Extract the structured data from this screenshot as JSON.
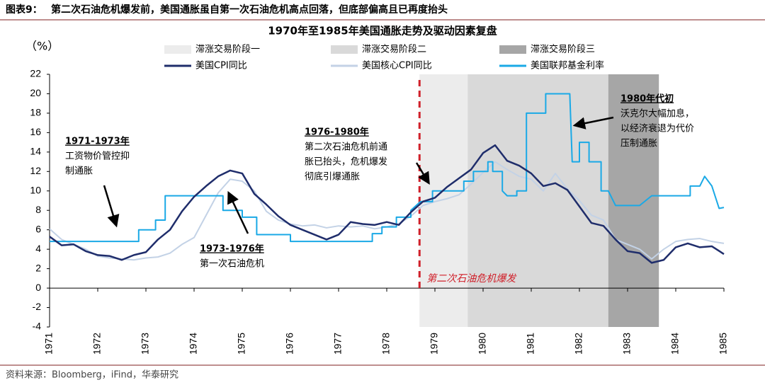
{
  "header": {
    "label": "图表9：",
    "title": "第二次石油危机爆发前，美国通胀虽自第一次石油危机高点回落，但底部偏高且已再度抬头"
  },
  "chart_data": {
    "type": "line",
    "title": "1970年至1985年美国通胀走势及驱动因素复盘",
    "y_label": "（%）",
    "xlim": [
      1971,
      1985
    ],
    "xticks": [
      1971,
      1972,
      1973,
      1974,
      1975,
      1976,
      1977,
      1978,
      1979,
      1980,
      1981,
      1982,
      1983,
      1984,
      1985
    ],
    "ylim": [
      -4,
      22
    ],
    "yticks": [
      -4,
      -2,
      0,
      2,
      4,
      6,
      8,
      10,
      12,
      14,
      16,
      18,
      20,
      22
    ],
    "shaded_regions": [
      {
        "name": "滞涨交易阶段一",
        "color": "#ececec",
        "xlim": [
          1978.68,
          1979.68
        ]
      },
      {
        "name": "滞涨交易阶段二",
        "color": "#d9d9d9",
        "xlim": [
          1979.68,
          1982.6
        ]
      },
      {
        "name": "滞涨交易阶段三",
        "color": "#a6a6a6",
        "xlim": [
          1982.6,
          1983.65
        ]
      }
    ],
    "event": {
      "x": 1978.68,
      "label": "第二次石油危机爆发",
      "color": "#d0202a"
    },
    "series": [
      {
        "name": "美国CPI同比",
        "color": "#1f2d6b",
        "x": [
          1971,
          1971.25,
          1971.5,
          1971.75,
          1972,
          1972.25,
          1972.5,
          1972.75,
          1973,
          1973.25,
          1973.5,
          1973.75,
          1974,
          1974.25,
          1974.5,
          1974.75,
          1975,
          1975.25,
          1975.5,
          1975.75,
          1976,
          1976.25,
          1976.5,
          1976.75,
          1977,
          1977.25,
          1977.5,
          1977.75,
          1978,
          1978.25,
          1978.5,
          1978.75,
          1979,
          1979.25,
          1979.5,
          1979.75,
          1980,
          1980.25,
          1980.5,
          1980.75,
          1981,
          1981.25,
          1981.5,
          1981.75,
          1982,
          1982.25,
          1982.5,
          1982.75,
          1983,
          1983.25,
          1983.5,
          1983.75,
          1984,
          1984.25,
          1984.5,
          1984.75,
          1985
        ],
        "values": [
          5.3,
          4.4,
          4.5,
          3.8,
          3.4,
          3.3,
          2.9,
          3.4,
          3.7,
          5.0,
          6.0,
          7.9,
          9.4,
          10.5,
          11.5,
          12.1,
          11.8,
          9.7,
          8.6,
          7.4,
          6.5,
          6.0,
          5.5,
          5.0,
          5.5,
          6.8,
          6.6,
          6.5,
          6.8,
          6.5,
          7.8,
          8.9,
          9.3,
          10.4,
          11.3,
          12.2,
          13.9,
          14.7,
          13.1,
          12.6,
          11.8,
          10.5,
          10.8,
          10.1,
          8.4,
          6.7,
          6.4,
          5.0,
          3.8,
          3.6,
          2.6,
          2.9,
          4.2,
          4.6,
          4.2,
          4.3,
          3.5
        ]
      },
      {
        "name": "美国核心CPI同比",
        "color": "#c3d2e6",
        "x": [
          1971,
          1971.25,
          1971.5,
          1971.75,
          1972,
          1972.25,
          1972.5,
          1972.75,
          1973,
          1973.25,
          1973.5,
          1973.75,
          1974,
          1974.25,
          1974.5,
          1974.75,
          1975,
          1975.25,
          1975.5,
          1975.75,
          1976,
          1976.25,
          1976.5,
          1976.75,
          1977,
          1977.25,
          1977.5,
          1977.75,
          1978,
          1978.25,
          1978.5,
          1978.75,
          1979,
          1979.25,
          1979.5,
          1979.75,
          1980,
          1980.25,
          1980.5,
          1980.75,
          1981,
          1981.25,
          1981.5,
          1981.75,
          1982,
          1982.25,
          1982.5,
          1982.75,
          1983,
          1983.25,
          1983.5,
          1983.75,
          1984,
          1984.25,
          1984.5,
          1984.75,
          1985
        ],
        "values": [
          6.1,
          5.0,
          4.5,
          4.0,
          3.3,
          3.1,
          3.0,
          2.9,
          3.1,
          3.2,
          3.6,
          4.5,
          5.2,
          7.5,
          9.8,
          11.2,
          11.0,
          10.0,
          7.9,
          7.0,
          6.6,
          6.4,
          6.5,
          6.2,
          6.4,
          6.3,
          6.4,
          6.1,
          6.3,
          6.6,
          7.4,
          8.5,
          8.9,
          9.2,
          9.6,
          10.7,
          11.9,
          13.0,
          12.2,
          11.5,
          11.2,
          10.0,
          11.8,
          10.2,
          9.0,
          7.5,
          7.0,
          5.0,
          4.5,
          4.0,
          3.0,
          4.0,
          4.8,
          5.0,
          5.1,
          4.8,
          4.6
        ]
      },
      {
        "name": "美国联邦基金利率",
        "color": "#1aa9e6",
        "x": [
          1971,
          1972.85,
          1972.85,
          1973.2,
          1973.2,
          1973.4,
          1973.4,
          1974.6,
          1974.6,
          1975,
          1975,
          1975.3,
          1975.3,
          1976,
          1976,
          1977.7,
          1977.7,
          1977.9,
          1977.9,
          1978.2,
          1978.2,
          1978.5,
          1978.5,
          1978.7,
          1978.95,
          1978.95,
          1979.6,
          1979.6,
          1979.8,
          1979.8,
          1980.1,
          1980.1,
          1980.2,
          1980.2,
          1980.4,
          1980.4,
          1980.5,
          1980.7,
          1980.7,
          1980.9,
          1980.9,
          1981.3,
          1981.3,
          1981.8,
          1981.85,
          1982,
          1982,
          1982.2,
          1982.2,
          1982.45,
          1982.45,
          1982.6,
          1982.75,
          1983.25,
          1983.5,
          1984.3,
          1984.3,
          1984.5,
          1984.6,
          1984.75,
          1984.9,
          1985
        ],
        "values": [
          4.8,
          4.8,
          6.0,
          6.0,
          7.0,
          7.0,
          9.5,
          9.5,
          8.0,
          8.0,
          7.3,
          7.3,
          5.5,
          5.5,
          4.8,
          4.8,
          5.6,
          5.6,
          6.3,
          6.3,
          7.3,
          7.3,
          8.0,
          8.9,
          8.9,
          10.0,
          10.0,
          11.0,
          11.0,
          12.0,
          12.0,
          13.0,
          13.0,
          12.0,
          12.0,
          10.0,
          9.5,
          9.5,
          10.0,
          10.0,
          18.0,
          18.0,
          20.0,
          20.0,
          13.0,
          13.0,
          15.0,
          15.0,
          13.0,
          13.0,
          10.0,
          10.0,
          8.5,
          8.5,
          9.5,
          9.5,
          10.5,
          10.5,
          11.5,
          10.5,
          8.2,
          8.3
        ]
      }
    ],
    "annotations": [
      {
        "title": "1971-1973年",
        "lines": [
          "工资物价管控抑",
          "制通胀"
        ]
      },
      {
        "title": "1973-1976年",
        "lines": [
          "第一次石油危机"
        ]
      },
      {
        "title": "1976-1980年",
        "lines": [
          "第二次石油危机前通",
          "胀已抬头，危机爆发",
          "彻底引爆通胀"
        ]
      },
      {
        "title": "1980年代初",
        "lines": [
          "沃克尔大幅加息，",
          "以经济衰退为代价",
          "压制通胀"
        ]
      }
    ]
  },
  "source": "资料来源：Bloomberg，iFind，华泰研究"
}
